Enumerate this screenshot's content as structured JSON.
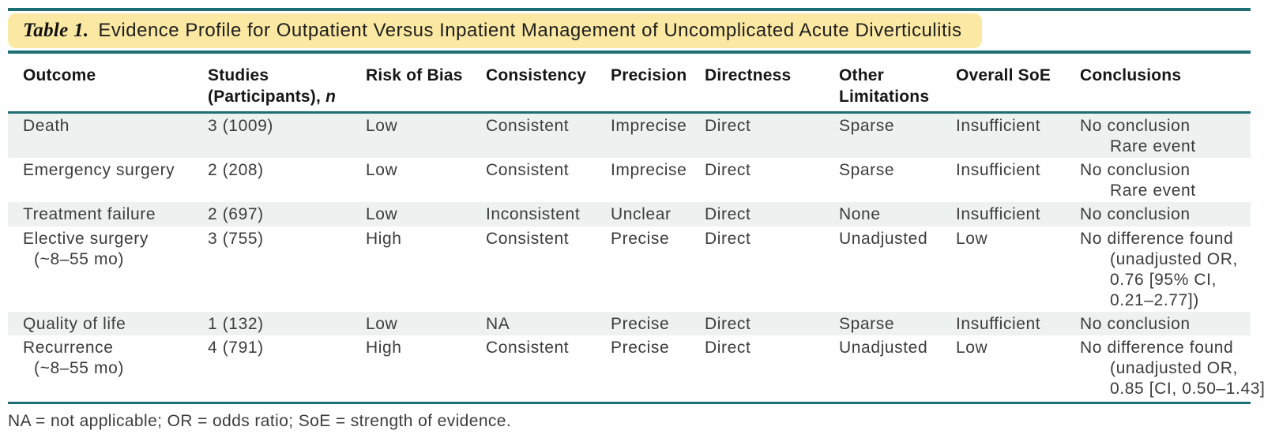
{
  "title": {
    "label": "Table 1.",
    "text": "Evidence Profile for Outpatient Versus Inpatient Management of Uncomplicated Acute Diverticulitis"
  },
  "columns": {
    "outcome": "Outcome",
    "studies_line1": "Studies",
    "studies_line2": "(Participants), ",
    "studies_n": "n",
    "risk_of_bias": "Risk of Bias",
    "consistency": "Consistency",
    "precision": "Precision",
    "directness": "Directness",
    "other_line1": "Other",
    "other_line2": "Limitations",
    "overall_soe": "Overall SoE",
    "conclusions": "Conclusions"
  },
  "rows": [
    {
      "outcome": "Death",
      "studies": "3 (1009)",
      "risk_of_bias": "Low",
      "consistency": "Consistent",
      "precision": "Imprecise",
      "directness": "Direct",
      "other_limitations": "Sparse",
      "overall_soe": "Insufficient",
      "conclusions": [
        "No conclusion",
        "Rare event"
      ]
    },
    {
      "outcome": "Emergency surgery",
      "studies": "2 (208)",
      "risk_of_bias": "Low",
      "consistency": "Consistent",
      "precision": "Imprecise",
      "directness": "Direct",
      "other_limitations": "Sparse",
      "overall_soe": "Insufficient",
      "conclusions": [
        "No conclusion",
        "Rare event"
      ]
    },
    {
      "outcome": "Treatment failure",
      "studies": "2 (697)",
      "risk_of_bias": "Low",
      "consistency": "Inconsistent",
      "precision": "Unclear",
      "directness": "Direct",
      "other_limitations": "None",
      "overall_soe": "Insufficient",
      "conclusions": [
        "No conclusion"
      ]
    },
    {
      "outcome": [
        "Elective surgery",
        "(~8–55 mo)"
      ],
      "studies": "3 (755)",
      "risk_of_bias": "High",
      "consistency": "Consistent",
      "precision": "Precise",
      "directness": "Direct",
      "other_limitations": "Unadjusted",
      "overall_soe": "Low",
      "conclusions": [
        "No difference found",
        "(unadjusted OR,",
        "0.76 [95% CI,",
        "0.21–2.77])"
      ]
    },
    {
      "outcome": "Quality of life",
      "studies": "1 (132)",
      "risk_of_bias": "Low",
      "consistency": "NA",
      "precision": "Precise",
      "directness": "Direct",
      "other_limitations": "Sparse",
      "overall_soe": "Insufficient",
      "conclusions": [
        "No conclusion"
      ]
    },
    {
      "outcome": [
        "Recurrence",
        "(~8–55 mo)"
      ],
      "studies": "4 (791)",
      "risk_of_bias": "High",
      "consistency": "Consistent",
      "precision": "Precise",
      "directness": "Direct",
      "other_limitations": "Unadjusted",
      "overall_soe": "Low",
      "conclusions": [
        "No difference found",
        "(unadjusted OR,",
        "0.85 [CI, 0.50–1.43])"
      ]
    }
  ],
  "footnote": "NA = not applicable; OR = odds ratio; SoE = strength of evidence.",
  "colors": {
    "rule_teal": "#1e6e76",
    "title_highlight": "#fbe8a2",
    "row_shade": "#edf2f0",
    "header_text": "#161616",
    "body_text": "#3c3c3d"
  }
}
